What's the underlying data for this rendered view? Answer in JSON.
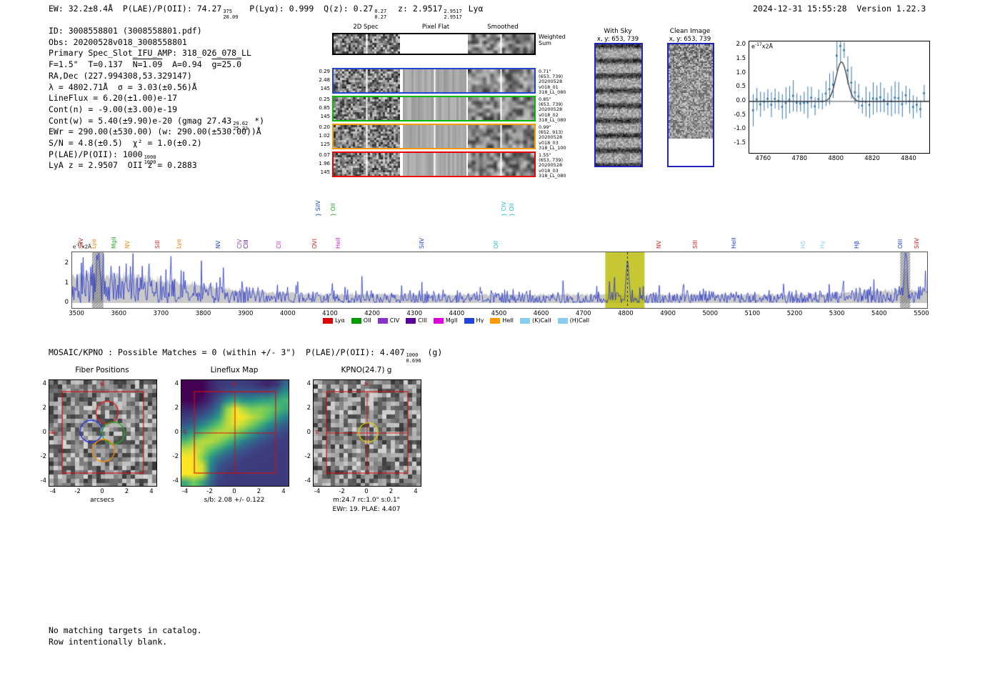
{
  "colors": {
    "spectrum_blue": "#2030cc",
    "fit_blue": "#3274ad",
    "accent_red": "#cc1111",
    "cutout_border_blue": "#2222bb",
    "highlight_yellow": "#b8b800",
    "gray_fill": "#c9c9c9"
  },
  "header": {
    "left_segments": [
      {
        "t": "EW: 32.2±8.4Å  P(LAE)/P(OII): 74.27"
      },
      {
        "sup": "375",
        "sub": "20.09"
      },
      {
        "t": "  P(Lyα): 0.999  Q(z): 0.27"
      },
      {
        "sup": "0.27",
        "sub": "0.27"
      },
      {
        "t": "  z: 2.9517"
      },
      {
        "sup": "2.9517",
        "sub": "2.9517"
      },
      {
        "t": " Lyα"
      }
    ],
    "timestamp": "2024-12-31 15:55:28",
    "version": "Version 1.22.3"
  },
  "info": {
    "lines": [
      [
        {
          "t": "ID: 3008558801 (3008558801.pdf)"
        }
      ],
      [
        {
          "t": "Obs: 20200528v018_3008558801"
        }
      ],
      [
        {
          "t": "Primary Spec_Slot_IFU_AMP: 318_026_078_LL"
        }
      ],
      [
        {
          "t": "F=1.5\"  T=0.137  "
        },
        {
          "t": "N=1.09",
          "o": 1
        },
        {
          "t": "  A=0.94  "
        },
        {
          "t": "g=25.0",
          "o": 1
        }
      ],
      [
        {
          "t": "RA,Dec (227.994308,53.329147)"
        }
      ],
      [
        {
          "t": "λ = 4802.71Å  σ = 3.03(±0.56)Å"
        }
      ],
      [
        {
          "t": "LineFlux = 6.20(±1.00)e-17"
        }
      ],
      [
        {
          "t": "Cont(n) = -9.00(±3.00)e-19"
        }
      ],
      [
        {
          "t": "Cont(w) = 5.40(±9.90)e-20 (gmag 27.43"
        },
        {
          "sup": "29.62",
          "sub": "25.23"
        },
        {
          "t": " *)"
        }
      ],
      [
        {
          "t": "EWr = 290.00(±530.00) (w: 290.00(±530.00))Å"
        }
      ],
      [
        {
          "t": "S/N = 4.8(±0.5)  χ² = 1.0(±0.2)"
        }
      ],
      [
        {
          "t": "P(LAE)/P(OII): 1000"
        },
        {
          "sup": "1000",
          "sub": "1000"
        }
      ],
      [
        {
          "t": "LyA z = 2.9507  OII z = 0.2883"
        }
      ]
    ]
  },
  "spec2d": {
    "col_headers": [
      "2D Spec",
      "Pixel Flat",
      "Smoothed"
    ],
    "rows": [
      {
        "border": "#000000",
        "left": [],
        "right": [
          "Weighted",
          "Sum"
        ],
        "flat": false,
        "blob": true
      },
      {
        "border": "#2244cc",
        "left": [
          "0.29",
          "2.48",
          "145"
        ],
        "right": [
          "0.71\"",
          "(653, 739)",
          "20200528",
          "v018_01",
          "318_LL_080"
        ],
        "flat": true,
        "blob": true
      },
      {
        "border": "#00bb00",
        "left": [
          "0.25",
          "0.85",
          "145"
        ],
        "right": [
          "0.85\"",
          "(653, 739)",
          "20200528",
          "v018_02",
          "318_LL_080"
        ],
        "flat": true,
        "blob": false
      },
      {
        "border": "#ff9900",
        "left": [
          "0.20",
          "1.02",
          "125"
        ],
        "right": [
          "0.99\"",
          "(652, 913)",
          "20200528",
          "v018_03",
          "318_LL_100"
        ],
        "flat": true,
        "blob": false
      },
      {
        "border": "#ee0000",
        "left": [
          "0.07",
          "1.96",
          "145"
        ],
        "right": [
          "1.55\"",
          "(653, 739)",
          "20200528",
          "v018_03",
          "318_LL_080"
        ],
        "flat": true,
        "blob": true
      }
    ]
  },
  "cutouts": {
    "with_sky": {
      "title": "With Sky",
      "subtitle": "x, y: 653, 739"
    },
    "clean": {
      "title": "Clean Image",
      "subtitle": "x, y: 653, 739"
    }
  },
  "chart_data": [
    {
      "type": "scatter",
      "title": "Line fit (observed wavelength vs flux)",
      "annotation": {
        "base": "e",
        "sup": "-17",
        "tail": "x2Å"
      },
      "xlim": [
        4752,
        4851
      ],
      "ylim": [
        -1.83,
        2.13
      ],
      "x_ticks": [
        4760,
        4780,
        4800,
        4820,
        4840
      ],
      "y_ticks": [
        "2.0",
        "1.5",
        "1.0",
        "0.5",
        "0.0",
        "-0.5",
        "-1.0",
        "-1.5"
      ],
      "fit": {
        "center": 4802.71,
        "sigma": 3.03,
        "amplitude": 1.4
      },
      "point_step": 2,
      "noise_amp": 0.34,
      "seed": 7
    },
    {
      "type": "line",
      "title": "Full HETDEX spectrum",
      "annotation": {
        "base": "e",
        "sup": "-17",
        "tail": "x2Å"
      },
      "xlim": [
        3488,
        5512
      ],
      "ylim": [
        -0.25,
        2.58
      ],
      "x_ticks": [
        3500,
        3600,
        3700,
        3800,
        3900,
        4000,
        4100,
        4200,
        4300,
        4400,
        4500,
        4600,
        4700,
        4800,
        4900,
        5000,
        5100,
        5200,
        5300,
        5400,
        5500
      ],
      "y_ticks": [
        "0",
        "1",
        "2"
      ],
      "highlight": {
        "x0": 4750,
        "x1": 4843,
        "line": 4802.71
      },
      "hatch_bands": [
        [
          3535,
          3562
        ],
        [
          5448,
          5472
        ]
      ],
      "emission_peak": {
        "center": 4802.71,
        "sigma": 3.0,
        "amplitude": 1.85
      },
      "sky_spikes": [
        {
          "x": 3550,
          "a": 2.3
        },
        {
          "x": 5461,
          "a": 2.4
        }
      ],
      "emission_labels": [
        {
          "t": "SiIV",
          "wl": 3522,
          "c": "#cc2222"
        },
        {
          "t": "Lyα",
          "wl": 3552,
          "c": "#ee8800"
        },
        {
          "t": "MgII",
          "wl": 3600,
          "c": "#22aa22"
        },
        {
          "t": "NV",
          "wl": 3632,
          "c": "#ee8800"
        },
        {
          "t": "SiII",
          "wl": 3703,
          "c": "#cc2222"
        },
        {
          "t": "Lyα",
          "wl": 3754,
          "c": "#ee8800"
        },
        {
          "t": "NV",
          "wl": 3846,
          "c": "#2244cc"
        },
        {
          "t": "CIV",
          "wl": 3897,
          "c": "#8844bb"
        },
        {
          "t": "CIII",
          "wl": 3913,
          "c": "#550099"
        },
        {
          "t": "CII",
          "wl": 3990,
          "c": "#cc22cc"
        },
        {
          "t": "OVI",
          "wl": 4074,
          "c": "#cc2222"
        },
        {
          "t": "} SiIV",
          "wl": 4083,
          "c": "#2244cc",
          "h": 1
        },
        {
          "t": "} OII",
          "wl": 4119,
          "c": "#22aa22",
          "h": 1
        },
        {
          "t": "HeII",
          "wl": 4130,
          "c": "#cc22cc"
        },
        {
          "t": "SiIV",
          "wl": 4328,
          "c": "#2244cc"
        },
        {
          "t": "OII",
          "wl": 4504,
          "c": "#22bbcc"
        },
        {
          "t": "} CIV",
          "wl": 4523,
          "c": "#22bbcc",
          "h": 1
        },
        {
          "t": "} OII",
          "wl": 4542,
          "c": "#22bbcc",
          "h": 1
        },
        {
          "t": "NV",
          "wl": 4889,
          "c": "#cc2222"
        },
        {
          "t": "SIII",
          "wl": 4976,
          "c": "#cc2222"
        },
        {
          "t": "HeII",
          "wl": 5068,
          "c": "#2244cc"
        },
        {
          "t": "Hδ",
          "wl": 5232,
          "c": "#88ccee"
        },
        {
          "t": "Hγ",
          "wl": 5277,
          "c": "#88ccee"
        },
        {
          "t": "Hβ",
          "wl": 5358,
          "c": "#2244cc"
        },
        {
          "t": "OIII",
          "wl": 5461,
          "c": "#2244cc"
        },
        {
          "t": "SiIV",
          "wl": 5501,
          "c": "#cc2222"
        }
      ],
      "legend": [
        {
          "label": "Lyα",
          "color": "#dd0000"
        },
        {
          "label": "OII",
          "color": "#009900"
        },
        {
          "label": "CIV",
          "color": "#8833cc"
        },
        {
          "label": "CIII",
          "color": "#550099"
        },
        {
          "label": "MgII",
          "color": "#dd00dd"
        },
        {
          "label": "Hγ",
          "color": "#2244dd"
        },
        {
          "label": "HeII",
          "color": "#ff9900"
        },
        {
          "label": "(K)CaII",
          "color": "#88ccee"
        },
        {
          "label": "(H)CaII",
          "color": "#88ccee"
        }
      ],
      "seed": 11
    }
  ],
  "mosaic": {
    "segments": [
      {
        "t": "MOSAIC/KPNO : Possible Matches = 0 (within +/- 3\")  P(LAE)/P(OII): 4.407"
      },
      {
        "sup": "1000",
        "sub": "0.696"
      },
      {
        "t": " (g)"
      }
    ]
  },
  "panels": [
    {
      "kind": "fiber",
      "title": "Fiber Positions",
      "xlabel": "arcsecs",
      "xlabel2": "",
      "x_ticks": [
        "-4",
        "-2",
        "0",
        "2",
        "4"
      ],
      "y_ticks": [
        "4",
        "2",
        "0",
        "-2",
        "-4"
      ],
      "compass_n": "N",
      "compass_e": "E"
    },
    {
      "kind": "lineflux",
      "title": "Lineflux Map",
      "xlabel": "s/b: 2.08 +/- 0.122",
      "xlabel2": "",
      "x_ticks": [
        "-4",
        "-2",
        "0",
        "2",
        "4"
      ],
      "y_ticks": [
        "4",
        "2",
        "0",
        "-2",
        "-4"
      ],
      "compass_n": "N",
      "compass_e": "E"
    },
    {
      "kind": "kpno",
      "title": "KPNO(24.7) g",
      "xlabel": "m:24.7 rc:1.0\" s:0.1\"",
      "xlabel2": "EWr: 19. PLAE: 4.407",
      "x_ticks": [
        "-4",
        "-2",
        "0",
        "2",
        "4"
      ],
      "y_ticks": [
        "4",
        "2",
        "0",
        "-2",
        "-4"
      ],
      "compass_n": "N",
      "compass_e": "E"
    }
  ],
  "footer": {
    "lines": [
      "No matching targets in catalog.",
      "Row intentionally blank."
    ]
  }
}
